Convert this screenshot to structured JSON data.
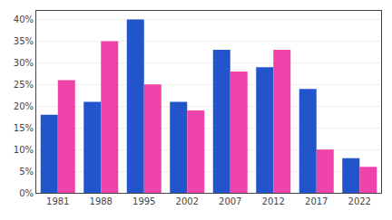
{
  "chart_data": {
    "type": "bar",
    "categories": [
      "1981",
      "1988",
      "1995",
      "2002",
      "2007",
      "2012",
      "2017",
      "2022"
    ],
    "series": [
      {
        "color": "#2255cc",
        "values": [
          18,
          21,
          40,
          21,
          33,
          29,
          24,
          8
        ]
      },
      {
        "color": "#ee44aa",
        "values": [
          26,
          35,
          25,
          19,
          28,
          33,
          10,
          6
        ]
      }
    ],
    "ylim": [
      0,
      42
    ],
    "yticks": [
      {
        "value": 0,
        "label": "0%"
      },
      {
        "value": 5,
        "label": "5%"
      },
      {
        "value": 10,
        "label": "10%"
      },
      {
        "value": 15,
        "label": "15%"
      },
      {
        "value": 20,
        "label": "20%"
      },
      {
        "value": 25,
        "label": "25%"
      },
      {
        "value": 30,
        "label": "30%"
      },
      {
        "value": 35,
        "label": "35%"
      },
      {
        "value": 40,
        "label": "40%"
      }
    ],
    "grid": true
  }
}
